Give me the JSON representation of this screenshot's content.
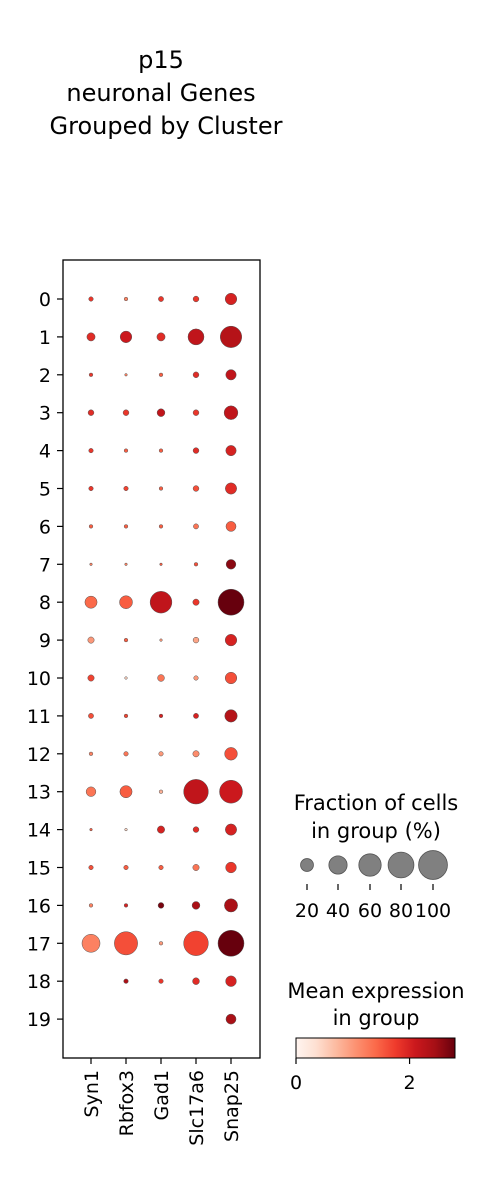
{
  "chart_data": {
    "type": "dotplot",
    "title_lines": [
      "p15",
      "neuronal Genes",
      "Grouped by Cluster"
    ],
    "genes": [
      "Syn1",
      "Rbfox3",
      "Gad1",
      "Slc17a6",
      "Snap25"
    ],
    "clusters": [
      "0",
      "1",
      "2",
      "3",
      "4",
      "5",
      "6",
      "7",
      "8",
      "9",
      "10",
      "11",
      "12",
      "13",
      "14",
      "15",
      "16",
      "17",
      "18",
      "19"
    ],
    "fraction_pct": [
      [
        3,
        2,
        4,
        5,
        20
      ],
      [
        10,
        20,
        10,
        38,
        68
      ],
      [
        2,
        1,
        2,
        5,
        16
      ],
      [
        5,
        5,
        9,
        5,
        28
      ],
      [
        3,
        2,
        2,
        5,
        16
      ],
      [
        3,
        3,
        2,
        5,
        19
      ],
      [
        2,
        2,
        2,
        4,
        15
      ],
      [
        1,
        1,
        1,
        2,
        14
      ],
      [
        22,
        25,
        70,
        6,
        100
      ],
      [
        6,
        2,
        1,
        5,
        20
      ],
      [
        6,
        1,
        7,
        3,
        20
      ],
      [
        4,
        2,
        2,
        4,
        23
      ],
      [
        2,
        3,
        3,
        6,
        24
      ],
      [
        14,
        22,
        2,
        90,
        78
      ],
      [
        1,
        1,
        8,
        5,
        19
      ],
      [
        3,
        3,
        3,
        6,
        17
      ],
      [
        2,
        2,
        5,
        9,
        26
      ],
      [
        48,
        80,
        2,
        90,
        100
      ],
      [
        0,
        3,
        3,
        7,
        17
      ],
      [
        0,
        0,
        0,
        0,
        15
      ]
    ],
    "mean_expression": [
      [
        1.8,
        1.2,
        1.8,
        1.8,
        2.0
      ],
      [
        1.9,
        2.1,
        1.9,
        2.2,
        2.3
      ],
      [
        1.8,
        1.2,
        1.5,
        1.9,
        2.2
      ],
      [
        1.9,
        1.8,
        2.2,
        1.8,
        2.2
      ],
      [
        1.8,
        1.5,
        1.5,
        1.9,
        2.0
      ],
      [
        1.8,
        1.7,
        1.5,
        1.6,
        1.9
      ],
      [
        1.5,
        1.5,
        1.5,
        1.3,
        1.5
      ],
      [
        1.2,
        1.2,
        1.5,
        1.6,
        2.6
      ],
      [
        1.4,
        1.5,
        2.2,
        1.8,
        2.8
      ],
      [
        1.0,
        1.5,
        1.0,
        0.9,
        2.0
      ],
      [
        1.7,
        0.5,
        1.3,
        1.0,
        1.6
      ],
      [
        1.6,
        1.7,
        2.0,
        2.0,
        2.3
      ],
      [
        1.2,
        1.3,
        1.0,
        1.1,
        1.6
      ],
      [
        1.3,
        1.5,
        0.8,
        2.2,
        2.1
      ],
      [
        1.5,
        0.5,
        2.0,
        1.9,
        2.0
      ],
      [
        1.6,
        1.5,
        1.5,
        1.3,
        1.8
      ],
      [
        1.2,
        2.0,
        2.7,
        2.4,
        2.4
      ],
      [
        1.2,
        1.6,
        1.0,
        1.7,
        2.8
      ],
      [
        null,
        2.4,
        1.8,
        1.9,
        2.0
      ],
      [
        null,
        null,
        null,
        null,
        2.4
      ]
    ],
    "size_legend": {
      "title_lines": [
        "Fraction of cells",
        "in group (%)"
      ],
      "values": [
        20,
        40,
        60,
        80,
        100
      ],
      "tick_labels": [
        "20",
        "40",
        "60",
        "80",
        "100"
      ]
    },
    "color_legend": {
      "title_lines": [
        "Mean expression",
        "in group"
      ],
      "range": [
        0,
        2.8
      ],
      "ticks": [
        0,
        2
      ],
      "tick_labels": [
        "0",
        "2"
      ],
      "colormap": "Reds",
      "color_stops": [
        "#fff5f0",
        "#fee0d2",
        "#fcbba1",
        "#fc9272",
        "#fb6a4a",
        "#ef3b2c",
        "#cb181d",
        "#a50f15",
        "#67000d"
      ]
    }
  }
}
